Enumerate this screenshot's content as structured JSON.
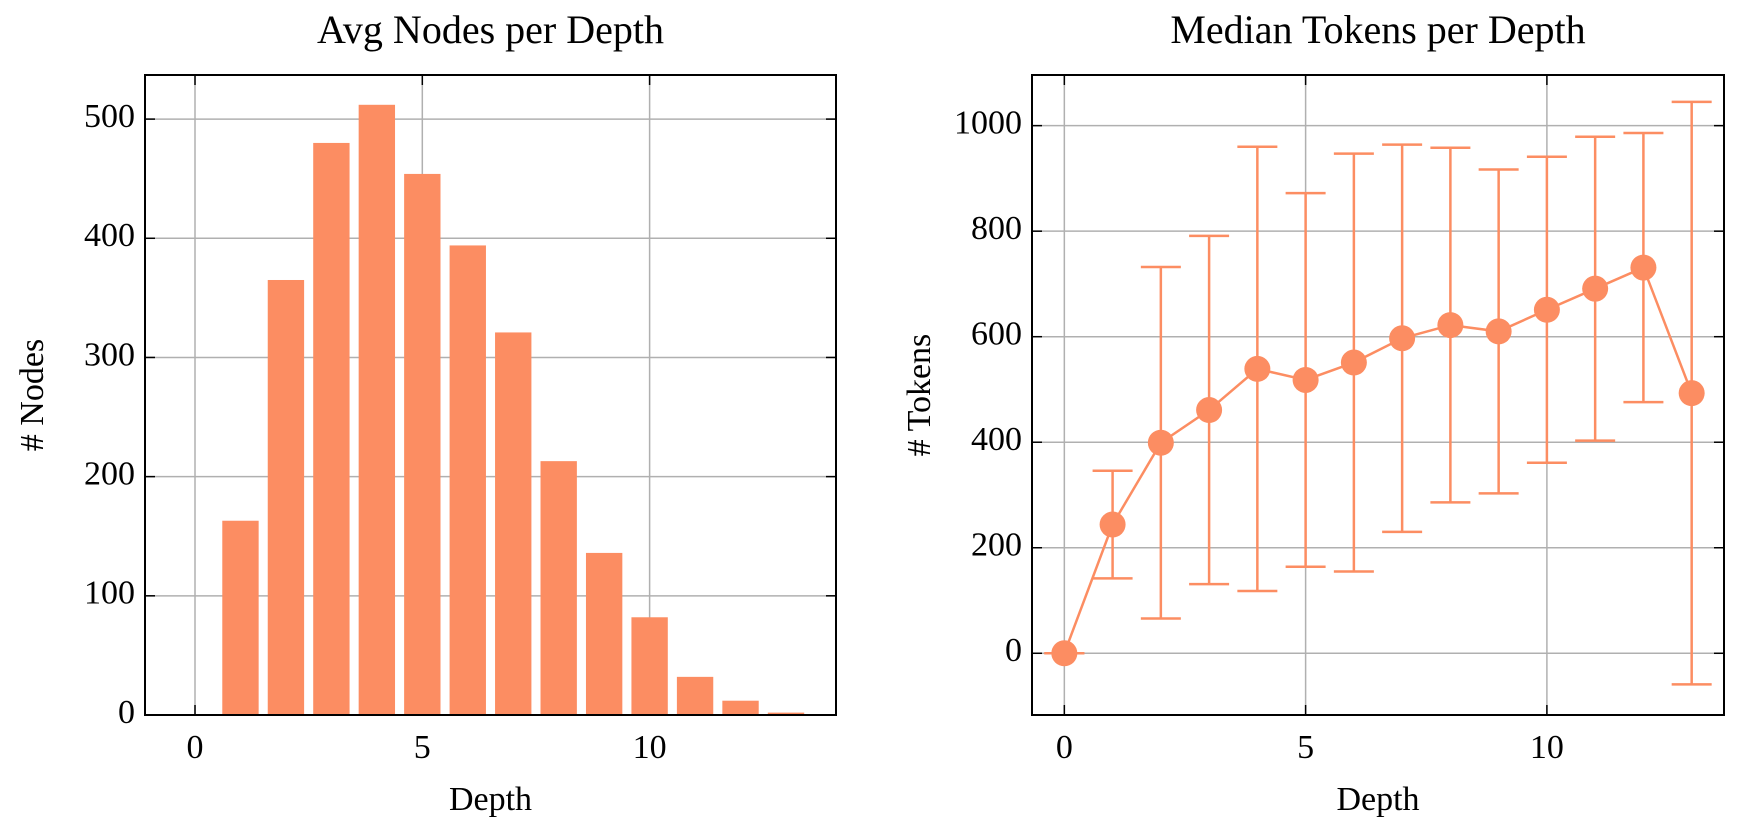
{
  "chart_data": [
    {
      "type": "bar",
      "title": "Avg Nodes per Depth",
      "x_label": "Depth",
      "y_label": "# Nodes",
      "x": [
        0,
        1,
        2,
        3,
        4,
        5,
        6,
        7,
        8,
        9,
        10,
        11,
        12,
        13
      ],
      "values": [
        0,
        163,
        365,
        480,
        512,
        454,
        394,
        321,
        213,
        136,
        82,
        32,
        12,
        2
      ],
      "color": "#fc8d62",
      "bar_width": 0.8,
      "xlim": [
        -1.1,
        14.1
      ],
      "xticks": [
        0,
        5,
        10
      ],
      "ylim": [
        0,
        537
      ],
      "yticks": [
        0,
        100,
        200,
        300,
        400,
        500
      ],
      "grid": true
    },
    {
      "type": "errorbar",
      "title": "Median Tokens per Depth",
      "x_label": "Depth",
      "y_label": "# Tokens",
      "x": [
        0,
        1,
        2,
        3,
        4,
        5,
        6,
        7,
        8,
        9,
        10,
        11,
        12,
        13
      ],
      "values": [
        0,
        244,
        399,
        461,
        539,
        518,
        551,
        597,
        622,
        610,
        651,
        691,
        731,
        493
      ],
      "errors": [
        0,
        102,
        333,
        330,
        421,
        354,
        396,
        367,
        336,
        307,
        290,
        288,
        255,
        552
      ],
      "color": "#fc8d62",
      "xlim": [
        -0.67,
        13.67
      ],
      "xticks": [
        0,
        5,
        10
      ],
      "ylim": [
        -117,
        1096
      ],
      "yticks": [
        0,
        200,
        400,
        600,
        800,
        1000
      ],
      "grid": true
    }
  ]
}
